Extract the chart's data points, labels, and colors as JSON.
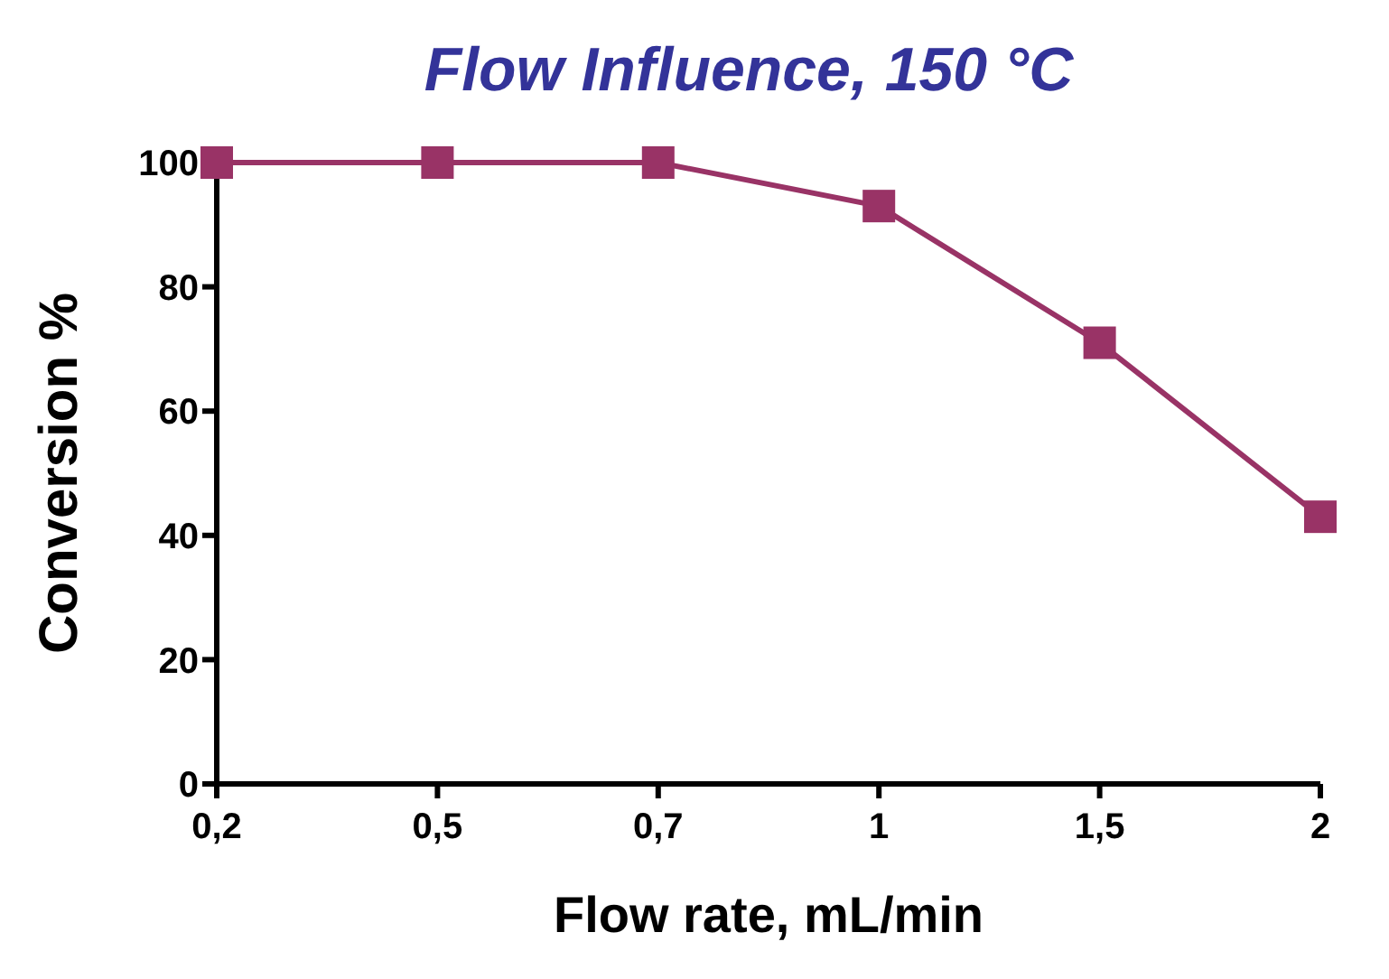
{
  "chart_data": {
    "type": "line",
    "title": "Flow Influence, 150 °C",
    "xlabel": "Flow rate, mL/min",
    "ylabel": "Conversion %",
    "categories": [
      "0,2",
      "0,5",
      "0,7",
      "1",
      "1,5",
      "2"
    ],
    "series": [
      {
        "color": "#993366",
        "values": [
          100,
          100,
          100,
          93,
          71,
          43
        ]
      }
    ],
    "ylim": [
      0,
      100
    ],
    "yticks": [
      0,
      20,
      40,
      60,
      80,
      100
    ],
    "grid": false,
    "legend": false,
    "marker": "square",
    "line_style": "solid"
  }
}
